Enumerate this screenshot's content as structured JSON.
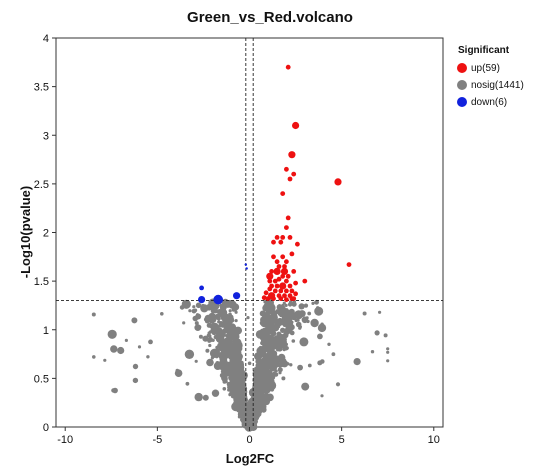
{
  "chart_data": {
    "type": "scatter",
    "title": "Green_vs_Red.volcano",
    "xlabel": "Log2FC",
    "ylabel": "-Log10(pvalue)",
    "xlim": [
      -10.5,
      10.5
    ],
    "ylim": [
      0,
      4
    ],
    "x_ticks": [
      -10,
      -5,
      0,
      5,
      10
    ],
    "y_ticks": [
      0,
      0.5,
      1,
      1.5,
      2,
      2.5,
      3,
      3.5,
      4
    ],
    "x_tick_labels": [
      "-10",
      "-5",
      "0",
      "5",
      "10"
    ],
    "y_tick_labels": [
      "0",
      "0.5",
      "1",
      "1.5",
      "2",
      "2.5",
      "3",
      "3.5",
      "4"
    ],
    "thresholds": {
      "pvalue_line_y": 1.3,
      "fc_lines_x": [
        -0.2,
        0.2
      ]
    },
    "legend": {
      "title": "Significant",
      "position": "right",
      "entries": [
        {
          "label": "up(59)",
          "color": "#ee1111"
        },
        {
          "label": "nosig(1441)",
          "color": "#808080"
        },
        {
          "label": "down(6)",
          "color": "#1122dd"
        }
      ]
    },
    "series": [
      {
        "name": "up(59)",
        "color": "#ee1111",
        "points": [
          [
            2.1,
            3.7,
            2
          ],
          [
            2.5,
            3.1,
            3
          ],
          [
            2.3,
            2.8,
            3
          ],
          [
            2.0,
            2.65,
            2
          ],
          [
            2.4,
            2.6,
            2
          ],
          [
            1.8,
            2.4,
            2
          ],
          [
            2.2,
            2.55,
            2
          ],
          [
            4.8,
            2.52,
            3
          ],
          [
            5.4,
            1.67,
            2
          ],
          [
            2.1,
            2.15,
            2
          ],
          [
            2.0,
            2.05,
            2
          ],
          [
            1.5,
            1.95,
            2
          ],
          [
            1.8,
            1.95,
            2
          ],
          [
            2.2,
            1.95,
            2
          ],
          [
            2.6,
            1.88,
            2
          ],
          [
            1.3,
            1.9,
            2
          ],
          [
            1.7,
            1.9,
            2
          ],
          [
            2.3,
            1.78,
            2
          ],
          [
            1.8,
            1.75,
            2
          ],
          [
            1.5,
            1.7,
            2
          ],
          [
            1.9,
            1.65,
            2
          ],
          [
            1.2,
            1.6,
            2
          ],
          [
            1.5,
            1.6,
            3
          ],
          [
            1.9,
            1.6,
            3
          ],
          [
            2.1,
            1.55,
            2
          ],
          [
            1.1,
            1.55,
            3
          ],
          [
            1.6,
            1.52,
            2
          ],
          [
            2.0,
            1.5,
            2
          ],
          [
            2.5,
            1.48,
            2
          ],
          [
            3.0,
            1.5,
            2
          ],
          [
            1.2,
            1.45,
            2
          ],
          [
            1.5,
            1.45,
            2
          ],
          [
            1.8,
            1.45,
            3
          ],
          [
            2.2,
            1.45,
            2
          ],
          [
            1.1,
            1.42,
            2
          ],
          [
            1.4,
            1.4,
            2
          ],
          [
            1.7,
            1.4,
            2
          ],
          [
            2.0,
            1.4,
            2
          ],
          [
            2.3,
            1.4,
            2
          ],
          [
            0.9,
            1.38,
            2
          ],
          [
            1.2,
            1.35,
            3
          ],
          [
            1.6,
            1.35,
            2
          ],
          [
            1.9,
            1.35,
            2
          ],
          [
            2.2,
            1.35,
            2
          ],
          [
            2.5,
            1.37,
            2
          ],
          [
            0.8,
            1.33,
            2
          ],
          [
            1.0,
            1.32,
            2
          ],
          [
            1.3,
            1.32,
            2
          ],
          [
            1.7,
            1.32,
            2
          ],
          [
            2.0,
            1.31,
            2
          ],
          [
            2.4,
            1.32,
            2
          ],
          [
            1.1,
            1.5,
            2
          ],
          [
            1.4,
            1.5,
            2
          ],
          [
            1.8,
            1.55,
            2
          ],
          [
            2.4,
            1.6,
            2
          ],
          [
            1.6,
            1.65,
            2
          ],
          [
            2.0,
            1.7,
            2
          ],
          [
            1.3,
            1.75,
            2
          ],
          [
            2.3,
            1.32,
            2
          ]
        ]
      },
      {
        "name": "down(6)",
        "color": "#1122dd",
        "points": [
          [
            -2.6,
            1.31,
            3
          ],
          [
            -1.7,
            1.31,
            4
          ],
          [
            -0.7,
            1.35,
            3
          ],
          [
            -2.6,
            1.43,
            2
          ],
          [
            -0.2,
            1.67,
            1
          ],
          [
            -0.15,
            1.63,
            1
          ]
        ]
      },
      {
        "name": "nosig(1441)",
        "color": "#808080",
        "points": []
      }
    ]
  }
}
